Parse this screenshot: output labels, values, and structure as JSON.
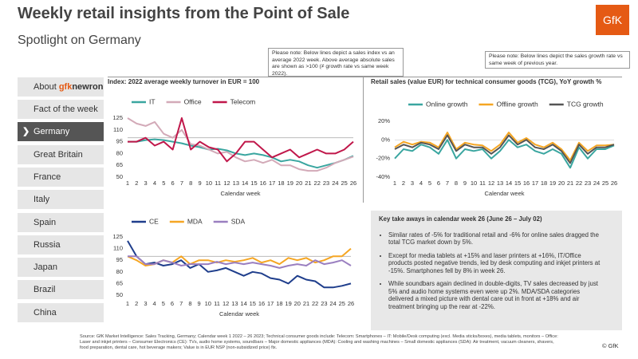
{
  "header": {
    "title": "Weekly retail insights from the Point of Sale",
    "subtitle": "Spotlight on Germany",
    "logo": "GfK"
  },
  "notes": [
    "Please note: Below lines depict a sales index vs an average 2022 week. Above average absolute sales are shown as >100 (≠ growth rate vs same week 2022).",
    "Please note: Below lines depict the sales growth rate vs same week of previous year."
  ],
  "nav": {
    "brand": {
      "prefix": "About ",
      "a": "gfk",
      "b": "newron"
    },
    "items": [
      "Fact of the week",
      "Germany",
      "Great Britain",
      "France",
      "Italy",
      "Spain",
      "Russia",
      "Japan",
      "Brazil",
      "China"
    ]
  },
  "chart_data": [
    {
      "type": "line",
      "title": "Index: 2022 average weekly turnover in EUR = 100",
      "xlabel": "Calendar week",
      "x": [
        1,
        2,
        3,
        4,
        5,
        6,
        7,
        8,
        9,
        10,
        11,
        12,
        13,
        14,
        15,
        16,
        17,
        18,
        19,
        20,
        21,
        22,
        23,
        24,
        25,
        26
      ],
      "xlim": [
        1,
        26
      ],
      "ylim": [
        50,
        125
      ],
      "yticks": [
        50,
        65,
        80,
        95,
        110,
        125
      ],
      "reference_line": 100,
      "series": [
        {
          "name": "IT",
          "color": "#3aa6a0",
          "values": [
            95,
            95,
            97,
            98,
            97,
            95,
            93,
            90,
            88,
            85,
            86,
            84,
            80,
            78,
            80,
            78,
            75,
            70,
            72,
            70,
            65,
            62,
            65,
            68,
            72,
            77
          ]
        },
        {
          "name": "Office",
          "color": "#d3aab8",
          "values": [
            125,
            118,
            115,
            120,
            105,
            100,
            110,
            92,
            90,
            85,
            80,
            82,
            75,
            70,
            72,
            68,
            72,
            65,
            65,
            60,
            58,
            58,
            62,
            68,
            72,
            76
          ]
        },
        {
          "name": "Telecom",
          "color": "#c0174a",
          "values": [
            95,
            95,
            100,
            90,
            95,
            85,
            125,
            85,
            95,
            88,
            85,
            70,
            80,
            95,
            95,
            85,
            75,
            80,
            85,
            75,
            80,
            85,
            80,
            80,
            85,
            95
          ]
        }
      ]
    },
    {
      "type": "line",
      "title": "Retail sales (value EUR) for technical consumer goods (TCG), YoY growth %",
      "xlabel": "Calendar week",
      "x": [
        1,
        2,
        3,
        4,
        5,
        6,
        7,
        8,
        9,
        10,
        11,
        12,
        13,
        14,
        15,
        16,
        17,
        18,
        19,
        20,
        21,
        22,
        23,
        24,
        25,
        26
      ],
      "xlim": [
        1,
        26
      ],
      "ylim": [
        -40,
        20
      ],
      "yticks": [
        {
          "value": -40,
          "label": "-40%"
        },
        {
          "value": -20,
          "label": "-20%"
        },
        {
          "value": 0,
          "label": "0%"
        },
        {
          "value": 20,
          "label": "20%"
        }
      ],
      "series": [
        {
          "name": "Online growth",
          "color": "#3aa6a0",
          "values": [
            -20,
            -10,
            -12,
            -5,
            -8,
            -15,
            0,
            -20,
            -10,
            -12,
            -10,
            -20,
            -12,
            0,
            -8,
            -5,
            -12,
            -15,
            -10,
            -15,
            -30,
            -8,
            -20,
            -10,
            -10,
            -6
          ]
        },
        {
          "name": "Offline growth",
          "color": "#f5a623",
          "values": [
            -8,
            -2,
            -5,
            -2,
            -3,
            -8,
            8,
            -10,
            -3,
            -5,
            -6,
            -12,
            -5,
            8,
            -3,
            2,
            -5,
            -8,
            -3,
            -10,
            -22,
            -3,
            -12,
            -6,
            -6,
            -5
          ]
        },
        {
          "name": "TCG growth",
          "color": "#555555",
          "values": [
            -10,
            -5,
            -8,
            -3,
            -5,
            -10,
            5,
            -12,
            -5,
            -8,
            -8,
            -15,
            -8,
            5,
            -5,
            0,
            -8,
            -10,
            -5,
            -12,
            -25,
            -5,
            -15,
            -8,
            -8,
            -5
          ]
        }
      ]
    },
    {
      "type": "line",
      "xlabel": "Calendar week",
      "x": [
        1,
        2,
        3,
        4,
        5,
        6,
        7,
        8,
        9,
        10,
        11,
        12,
        13,
        14,
        15,
        16,
        17,
        18,
        19,
        20,
        21,
        22,
        23,
        24,
        25,
        26
      ],
      "xlim": [
        1,
        26
      ],
      "ylim": [
        50,
        125
      ],
      "yticks": [
        50,
        65,
        80,
        95,
        110,
        125
      ],
      "reference_line": 100,
      "series": [
        {
          "name": "CE",
          "color": "#1f3e8c",
          "values": [
            120,
            100,
            90,
            92,
            88,
            90,
            95,
            85,
            90,
            80,
            82,
            85,
            80,
            75,
            80,
            78,
            72,
            70,
            65,
            75,
            70,
            68,
            60,
            60,
            62,
            65
          ]
        },
        {
          "name": "MDA",
          "color": "#f5a623",
          "values": [
            100,
            95,
            88,
            90,
            95,
            92,
            100,
            90,
            95,
            95,
            92,
            95,
            93,
            95,
            98,
            92,
            95,
            90,
            98,
            95,
            98,
            92,
            95,
            100,
            100,
            110
          ]
        },
        {
          "name": "SDA",
          "color": "#9a7fc0",
          "values": [
            100,
            100,
            90,
            90,
            95,
            92,
            88,
            90,
            90,
            90,
            93,
            90,
            92,
            90,
            92,
            90,
            88,
            85,
            88,
            90,
            88,
            95,
            90,
            92,
            95,
            88
          ]
        }
      ]
    }
  ],
  "takeaways": {
    "title": "Key take aways in calendar week 26 (June 26 – July 02)",
    "bullets": [
      "Similar rates of -5% for traditional retail and -6% for online sales dragged the total TCG market down by 5%.",
      "Except for media tablets at +15% and laser printers at +16%, IT/Office products posted negative trends, led by desk computing and inkjet printers at -15%. Smartphones fell by 8% in week 26.",
      "While soundbars again declined in double-digits, TV sales decreased by just 5% and audio home systems even were up 2%. MDA/SDA categories delivered a mixed picture with dental care out in front at +18% and air treatment bringing up the rear at -22%."
    ]
  },
  "footer": {
    "source": "Source: GfK Market Intelligence: Sales Tracking, Germany; Calendar week 1 2022 – 26 2023; Technical consumer goods include: Telecom: Smartphones – IT: Mobile/Desk computing (excl. Media sticks/boxes), media tablets, monitors – Office: Laser and inkjet printers – Consumer Electronics (CE): TVs, audio home systems, soundbars – Major domestic appliances (MDA): Cooling and washing machines – Small domestic appliances (SDA): Air treatment, vacuum cleaners, shavers, food preparation, dental care, hot beverage makers; Value is in EUR NSP (non-subsidized price) fix.",
    "copyright": "© GfK"
  }
}
